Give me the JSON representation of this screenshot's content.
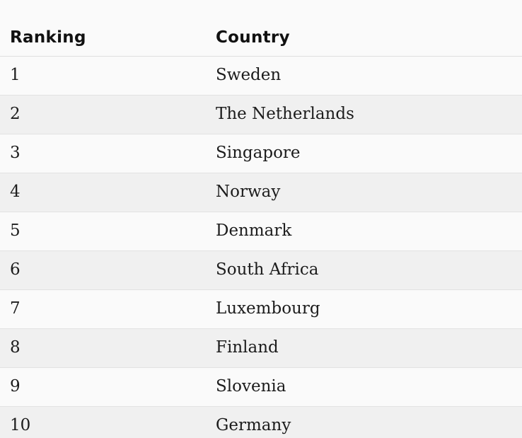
{
  "table": {
    "header": {
      "ranking_label": "Ranking",
      "country_label": "Country"
    },
    "rows": [
      {
        "ranking": "1",
        "country": "Sweden"
      },
      {
        "ranking": "2",
        "country": "The Netherlands"
      },
      {
        "ranking": "3",
        "country": "Singapore"
      },
      {
        "ranking": "4",
        "country": "Norway"
      },
      {
        "ranking": "5",
        "country": "Denmark"
      },
      {
        "ranking": "6",
        "country": "South Africa"
      },
      {
        "ranking": "7",
        "country": "Luxembourg"
      },
      {
        "ranking": "8",
        "country": "Finland"
      },
      {
        "ranking": "9",
        "country": "Slovenia"
      },
      {
        "ranking": "10",
        "country": "Germany"
      }
    ]
  },
  "colors": {
    "page_background": "#fafafa",
    "row_background": "#fafafa",
    "row_alt_background": "#f0f0f0",
    "divider": "#e2e2e2",
    "header_divider": "#dfdfdf",
    "header_text": "#111111",
    "body_text": "#1c1c1c"
  },
  "chart_data": {
    "type": "table",
    "columns": [
      "Ranking",
      "Country"
    ],
    "rows": [
      [
        1,
        "Sweden"
      ],
      [
        2,
        "The Netherlands"
      ],
      [
        3,
        "Singapore"
      ],
      [
        4,
        "Norway"
      ],
      [
        5,
        "Denmark"
      ],
      [
        6,
        "South Africa"
      ],
      [
        7,
        "Luxembourg"
      ],
      [
        8,
        "Finland"
      ],
      [
        9,
        "Slovenia"
      ],
      [
        10,
        "Germany"
      ]
    ]
  }
}
